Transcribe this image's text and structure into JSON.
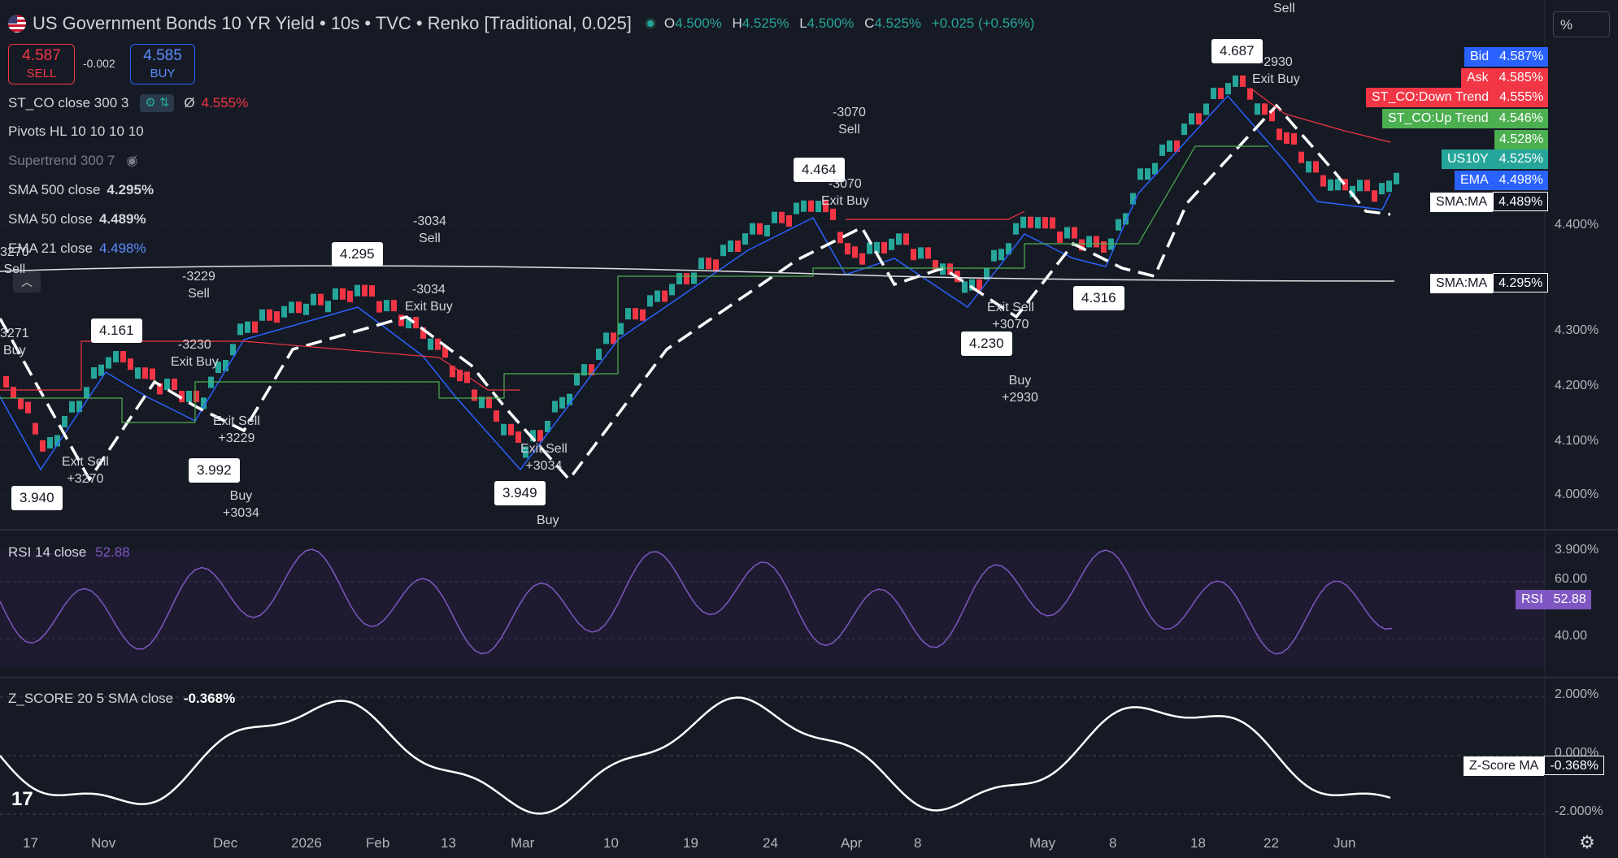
{
  "header": {
    "title": "US Government Bonds 10 YR Yield • 10s • TVC • Renko [Traditional, 0.025]",
    "ohlc": [
      {
        "k": "O",
        "v": "4.500%"
      },
      {
        "k": "H",
        "v": "4.525%"
      },
      {
        "k": "L",
        "v": "4.500%"
      },
      {
        "k": "C",
        "v": "4.525%"
      }
    ],
    "change": "+0.025 (+0.56%)"
  },
  "trade": {
    "sell_price": "4.587",
    "sell_label": "SELL",
    "spread": "-0.002",
    "buy_price": "4.585",
    "buy_label": "BUY"
  },
  "legends": {
    "stco": "ST_CO close 300 3",
    "stco_value": "4.555%",
    "pivots": "Pivots HL 10 10 10 10",
    "supertrend": "Supertrend 300 7",
    "sma500": "SMA 500 close",
    "sma500_value": "4.295%",
    "sma50": "SMA 50 close",
    "sma50_value": "4.489%",
    "ema21": "EMA 21 close",
    "ema21_value": "4.498%"
  },
  "scale_unit": "%",
  "price_tags": [
    {
      "name": "Bid",
      "value": "4.587%",
      "color": "#2962ff"
    },
    {
      "name": "Ask",
      "value": "4.585%",
      "color": "#f23645"
    },
    {
      "name": "ST_CO:Down Trend",
      "value": "4.555%",
      "color": "#f23645"
    },
    {
      "name": "ST_CO:Up Trend",
      "value": "4.546%",
      "color": "#4caf50"
    },
    {
      "name": "",
      "value": "4.528%",
      "color": "#4caf50"
    },
    {
      "name": "US10Y",
      "value": "4.525%",
      "color": "#26a69a"
    },
    {
      "name": "EMA",
      "value": "4.498%",
      "color": "#2962ff"
    },
    {
      "name": "SMA:MA",
      "value": "4.489%",
      "color": "#ffffff"
    },
    {
      "name": "SMA:MA",
      "value": "4.295%",
      "color": "#ffffff"
    }
  ],
  "price_axis": [
    "4.400%",
    "4.300%",
    "4.200%",
    "4.100%",
    "4.000%",
    "3.900%"
  ],
  "rsi": {
    "label": "RSI 14 close",
    "value": "52.88",
    "tag": "RSI",
    "axis": [
      "60.00",
      "40.00"
    ]
  },
  "zscore": {
    "label": "Z_SCORE 20 5 SMA close",
    "value": "-0.368%",
    "tag": "Z-Score MA",
    "axis": [
      "2.000%",
      "0.000%",
      "-2.000%"
    ]
  },
  "time_axis": [
    "17",
    "Nov",
    "Dec",
    "2026",
    "Feb",
    "13",
    "Mar",
    "10",
    "19",
    "24",
    "Apr",
    "8",
    "May",
    "8",
    "18",
    "22",
    "Jun"
  ],
  "pivots": [
    "4.161",
    "3.940",
    "3.992",
    "4.295",
    "3.949",
    "4.464",
    "4.687",
    "4.230",
    "4.316"
  ],
  "annotations": [
    {
      "lines": [
        "3270",
        "Sell"
      ]
    },
    {
      "lines": [
        "3271",
        "Buy"
      ]
    },
    {
      "lines": [
        "Exit Sell",
        "+3270"
      ]
    },
    {
      "lines": [
        "-3229",
        "Sell"
      ]
    },
    {
      "lines": [
        "-3230",
        "Exit Buy"
      ]
    },
    {
      "lines": [
        "Exit Sell",
        "+3229"
      ]
    },
    {
      "lines": [
        "Buy",
        "+3034"
      ]
    },
    {
      "lines": [
        "-3034",
        "Sell"
      ]
    },
    {
      "lines": [
        "-3034",
        "Exit Buy"
      ]
    },
    {
      "lines": [
        "Exit Sell",
        "+3034"
      ]
    },
    {
      "lines": [
        "Buy"
      ]
    },
    {
      "lines": [
        "-3070",
        "Sell"
      ]
    },
    {
      "lines": [
        "-3070",
        "Exit Buy"
      ]
    },
    {
      "lines": [
        "Exit Sell",
        "+3070"
      ]
    },
    {
      "lines": [
        "Buy",
        "+2930"
      ]
    },
    {
      "lines": [
        "Sell"
      ]
    },
    {
      "lines": [
        "-2930",
        "Exit Buy"
      ]
    }
  ],
  "colors": {
    "up": "#26a69a",
    "down": "#f23645",
    "background": "#161a25",
    "ema": "#2962ff",
    "rsi": "#7e57c2"
  }
}
